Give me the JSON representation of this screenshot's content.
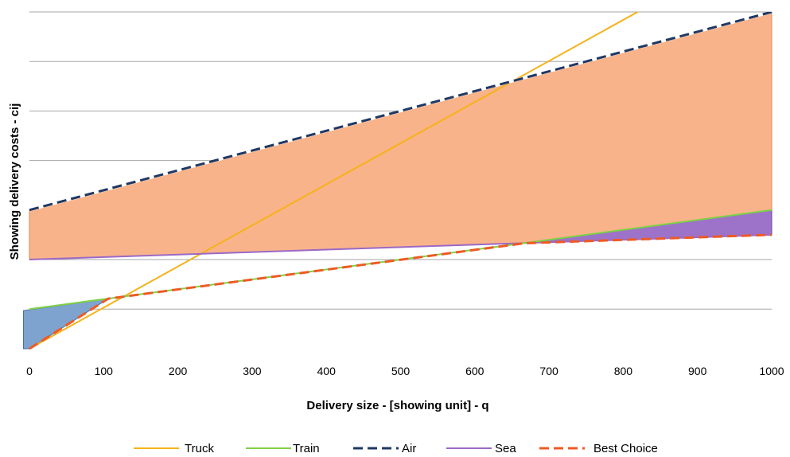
{
  "chart_data": {
    "type": "line",
    "title": "",
    "xlabel": "Delivery size - [showing unit] - q",
    "ylabel": "Showing delivery costs - cij",
    "xlim": [
      0,
      1000
    ],
    "ylim": [
      -0.8,
      6
    ],
    "grid": true,
    "legend_position": "bottom",
    "x_ticks": [
      "0",
      "100",
      "200",
      "300",
      "400",
      "500",
      "600",
      "700",
      "800",
      "900",
      "1000"
    ],
    "series": [
      {
        "name": "Truck",
        "color": "#f5b219",
        "dash": "solid",
        "x": [
          0,
          1000
        ],
        "y": [
          -0.8,
          7.5
        ]
      },
      {
        "name": "Train",
        "color": "#7ed145",
        "dash": "solid",
        "x": [
          0,
          1000
        ],
        "y": [
          0,
          2
        ]
      },
      {
        "name": "Air",
        "color": "#1f3864",
        "dash": "dashed",
        "x": [
          0,
          1000
        ],
        "y": [
          2,
          6
        ]
      },
      {
        "name": "Sea",
        "color": "#9b69c6",
        "dash": "solid",
        "x": [
          0,
          1000
        ],
        "y": [
          1,
          1.5
        ]
      },
      {
        "name": "Best Choice",
        "color": "#ee5a24",
        "dash": "dashed",
        "x": [
          0,
          106,
          667,
          1000
        ],
        "y": [
          -0.8,
          0.21,
          1.33,
          1.5
        ]
      }
    ],
    "areas": [
      {
        "fill": "#f9b38a",
        "stroke": "#e08a54",
        "x": [
          0,
          1000,
          1000,
          0
        ],
        "y": [
          2,
          6,
          1.5,
          1
        ]
      },
      {
        "fill": "#9d73c9",
        "stroke": "#6d4a9a",
        "x": [
          667,
          1000,
          1000
        ],
        "y": [
          1.33,
          2,
          1.5
        ]
      },
      {
        "fill": "#7fa3cf",
        "stroke": "#4a6ea0",
        "x": [
          -8,
          106,
          0,
          -8
        ],
        "y": [
          -0.03,
          0.21,
          -0.8,
          -0.8
        ]
      }
    ]
  }
}
